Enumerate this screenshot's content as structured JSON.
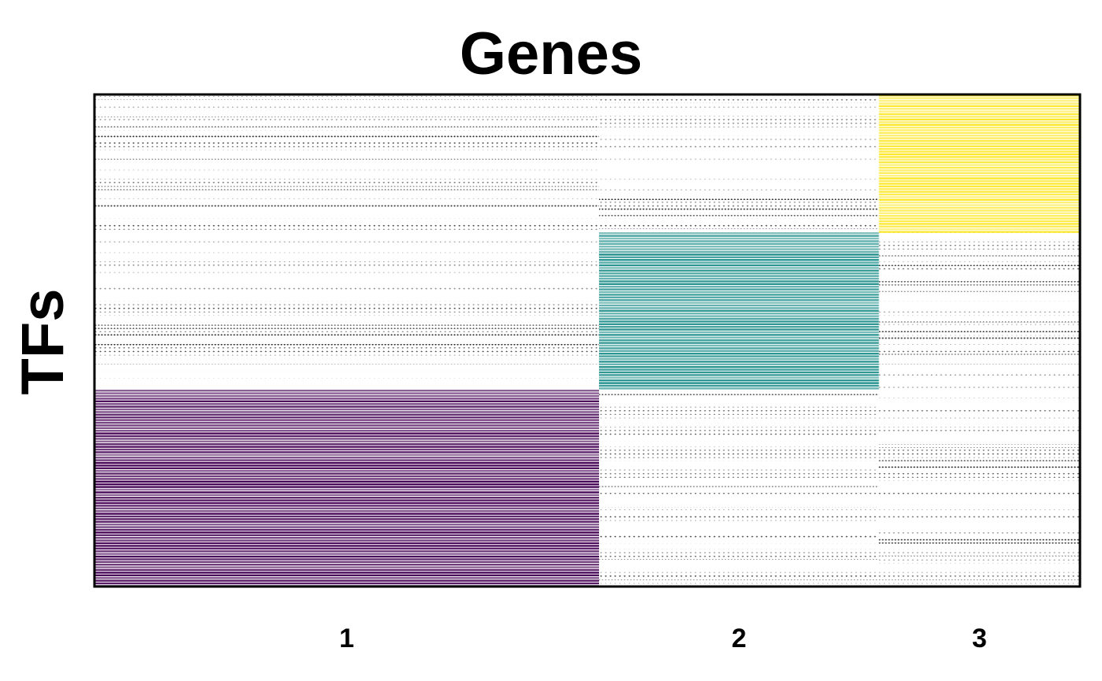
{
  "chart_data": {
    "type": "heatmap",
    "title": "Genes",
    "xlabel": "",
    "ylabel": "TFs",
    "categories": [
      "1",
      "2",
      "3"
    ],
    "column_fraction": [
      0.512,
      0.284,
      0.204
    ],
    "blocks": [
      {
        "row_range": [
          0.0,
          0.28
        ],
        "column": "3",
        "color": "#FDE725"
      },
      {
        "row_range": [
          0.28,
          0.6
        ],
        "column": "2",
        "color": "#21908C"
      },
      {
        "row_range": [
          0.6,
          1.0
        ],
        "column": "1",
        "color": "#440154"
      }
    ],
    "background_dot_color": "#000000",
    "grid": false
  }
}
